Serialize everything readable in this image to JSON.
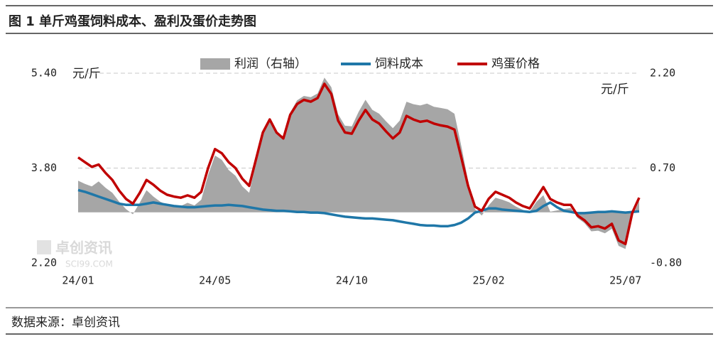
{
  "chart_data": {
    "type": "line",
    "title": "图 1 单斤鸡蛋饲料成本、盈利及蛋价走势图",
    "source": "数据来源：卓创资讯",
    "watermark": "卓创资讯",
    "watermark_sub": "SCI99.COM",
    "y_unit": "元/斤",
    "y2_unit": "元/斤",
    "categories": [
      "24/01",
      null,
      null,
      null,
      null,
      null,
      null,
      null,
      null,
      null,
      null,
      null,
      null,
      null,
      null,
      null,
      null,
      null,
      null,
      null,
      "24/05",
      null,
      null,
      null,
      null,
      null,
      null,
      null,
      null,
      null,
      null,
      null,
      null,
      null,
      null,
      null,
      null,
      null,
      null,
      null,
      "24/10",
      null,
      null,
      null,
      null,
      null,
      null,
      null,
      null,
      null,
      null,
      null,
      null,
      null,
      null,
      null,
      null,
      null,
      null,
      null,
      "25/02",
      null,
      null,
      null,
      null,
      null,
      null,
      null,
      null,
      null,
      null,
      null,
      null,
      null,
      null,
      null,
      null,
      null,
      null,
      null,
      "25/07",
      null,
      null
    ],
    "ylim": [
      2.2,
      5.4
    ],
    "yticks": [
      {
        "value": 2.2,
        "label": "2.20"
      },
      {
        "value": 3.8,
        "label": "3.80"
      },
      {
        "value": 5.4,
        "label": "5.40"
      }
    ],
    "y2lim": [
      -0.8,
      2.2
    ],
    "y2ticks": [
      {
        "value": -0.8,
        "label": "-0.80"
      },
      {
        "value": 0.7,
        "label": "0.70"
      },
      {
        "value": 2.2,
        "label": "2.20"
      }
    ],
    "grid": true,
    "legend": "top",
    "series": [
      {
        "name": "利润（右轴）",
        "type": "area",
        "axis": "y2",
        "color": "#a6a6a6",
        "values": [
          0.5,
          0.45,
          0.41,
          0.49,
          0.39,
          0.31,
          0.17,
          0.05,
          -0.03,
          0.15,
          0.35,
          0.25,
          0.17,
          0.12,
          0.11,
          0.1,
          0.15,
          0.11,
          0.2,
          0.59,
          0.9,
          0.83,
          0.67,
          0.58,
          0.41,
          0.31,
          0.78,
          1.25,
          1.48,
          1.27,
          1.17,
          1.58,
          1.77,
          1.84,
          1.82,
          1.88,
          2.13,
          1.98,
          1.55,
          1.37,
          1.36,
          1.59,
          1.78,
          1.62,
          1.56,
          1.44,
          1.33,
          1.45,
          1.75,
          1.71,
          1.69,
          1.72,
          1.67,
          1.65,
          1.63,
          1.56,
          1.05,
          0.5,
          0.05,
          -0.05,
          0.11,
          0.23,
          0.2,
          0.16,
          0.09,
          0.04,
          0.01,
          0.17,
          0.27,
          0.01,
          0.03,
          0.05,
          0.07,
          -0.09,
          -0.17,
          -0.3,
          -0.29,
          -0.33,
          -0.26,
          -0.53,
          -0.58,
          -0.06,
          0.18
        ]
      },
      {
        "name": "饲料成本",
        "type": "line",
        "color": "#1f77a8",
        "values": [
          3.43,
          3.4,
          3.36,
          3.32,
          3.28,
          3.24,
          3.2,
          3.18,
          3.18,
          3.18,
          3.2,
          3.22,
          3.2,
          3.18,
          3.16,
          3.15,
          3.14,
          3.14,
          3.15,
          3.16,
          3.17,
          3.17,
          3.18,
          3.17,
          3.16,
          3.14,
          3.12,
          3.1,
          3.09,
          3.08,
          3.08,
          3.07,
          3.06,
          3.06,
          3.05,
          3.05,
          3.04,
          3.02,
          3.0,
          2.98,
          2.97,
          2.96,
          2.95,
          2.95,
          2.94,
          2.93,
          2.92,
          2.9,
          2.88,
          2.86,
          2.84,
          2.83,
          2.83,
          2.82,
          2.82,
          2.84,
          2.88,
          2.95,
          3.05,
          3.08,
          3.12,
          3.12,
          3.1,
          3.09,
          3.08,
          3.07,
          3.06,
          3.08,
          3.16,
          3.22,
          3.14,
          3.08,
          3.06,
          3.04,
          3.04,
          3.05,
          3.06,
          3.06,
          3.07,
          3.06,
          3.05,
          3.06,
          3.07
        ]
      },
      {
        "name": "鸡蛋价格",
        "type": "line",
        "color": "#c00000",
        "values": [
          3.98,
          3.9,
          3.82,
          3.86,
          3.72,
          3.6,
          3.42,
          3.28,
          3.2,
          3.38,
          3.6,
          3.52,
          3.42,
          3.35,
          3.32,
          3.3,
          3.34,
          3.3,
          3.4,
          3.8,
          4.12,
          4.05,
          3.9,
          3.8,
          3.62,
          3.5,
          3.95,
          4.4,
          4.62,
          4.4,
          4.3,
          4.7,
          4.88,
          4.95,
          4.92,
          4.98,
          5.22,
          5.05,
          4.6,
          4.4,
          4.38,
          4.6,
          4.78,
          4.62,
          4.55,
          4.42,
          4.3,
          4.4,
          4.68,
          4.62,
          4.58,
          4.6,
          4.55,
          4.52,
          4.5,
          4.45,
          3.98,
          3.5,
          3.15,
          3.08,
          3.28,
          3.4,
          3.35,
          3.3,
          3.22,
          3.16,
          3.12,
          3.3,
          3.48,
          3.28,
          3.22,
          3.18,
          3.18,
          3.0,
          2.92,
          2.8,
          2.82,
          2.78,
          2.86,
          2.58,
          2.52,
          3.05,
          3.3
        ]
      }
    ]
  }
}
